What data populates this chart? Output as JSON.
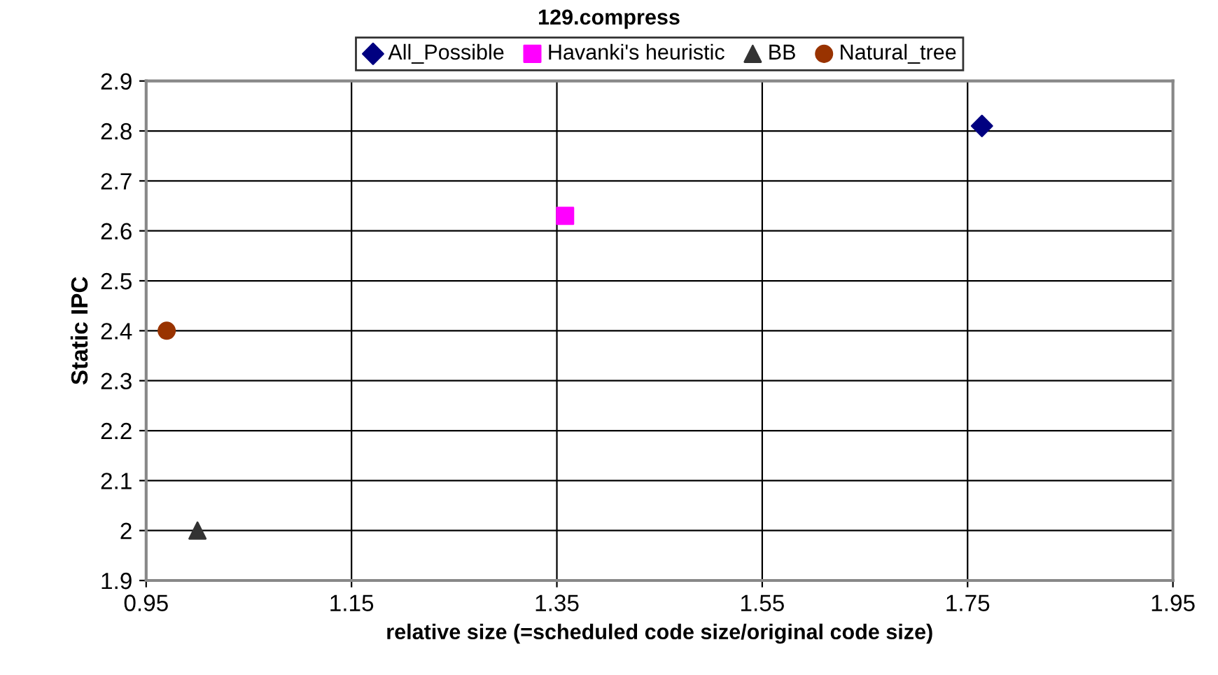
{
  "chart_data": {
    "type": "scatter",
    "title": "129.compress",
    "xlabel": "relative size (=scheduled code size/original code size)",
    "ylabel": "Static IPC",
    "series": [
      {
        "name": "All_Possible",
        "color": "#000080",
        "marker": "diamond",
        "x": [
          1.764
        ],
        "values": [
          2.81
        ]
      },
      {
        "name": "Havanki's heuristic",
        "color": "#ff00ff",
        "marker": "square",
        "x": [
          1.358
        ],
        "values": [
          2.63
        ]
      },
      {
        "name": "BB",
        "color": "#333333",
        "marker": "triangle",
        "x": [
          1.0
        ],
        "values": [
          2.0
        ]
      },
      {
        "name": "Natural_tree",
        "color": "#993300",
        "marker": "circle",
        "x": [
          0.97
        ],
        "values": [
          2.4
        ]
      }
    ],
    "xlim": [
      0.95,
      1.95
    ],
    "xticks": [
      0.95,
      1.15,
      1.35,
      1.55,
      1.75,
      1.95
    ],
    "ylim": [
      1.9,
      2.9
    ],
    "yticks": [
      1.9,
      2,
      2.1,
      2.2,
      2.3,
      2.4,
      2.5,
      2.6,
      2.7,
      2.8,
      2.9
    ],
    "grid": true,
    "legend": "top"
  }
}
